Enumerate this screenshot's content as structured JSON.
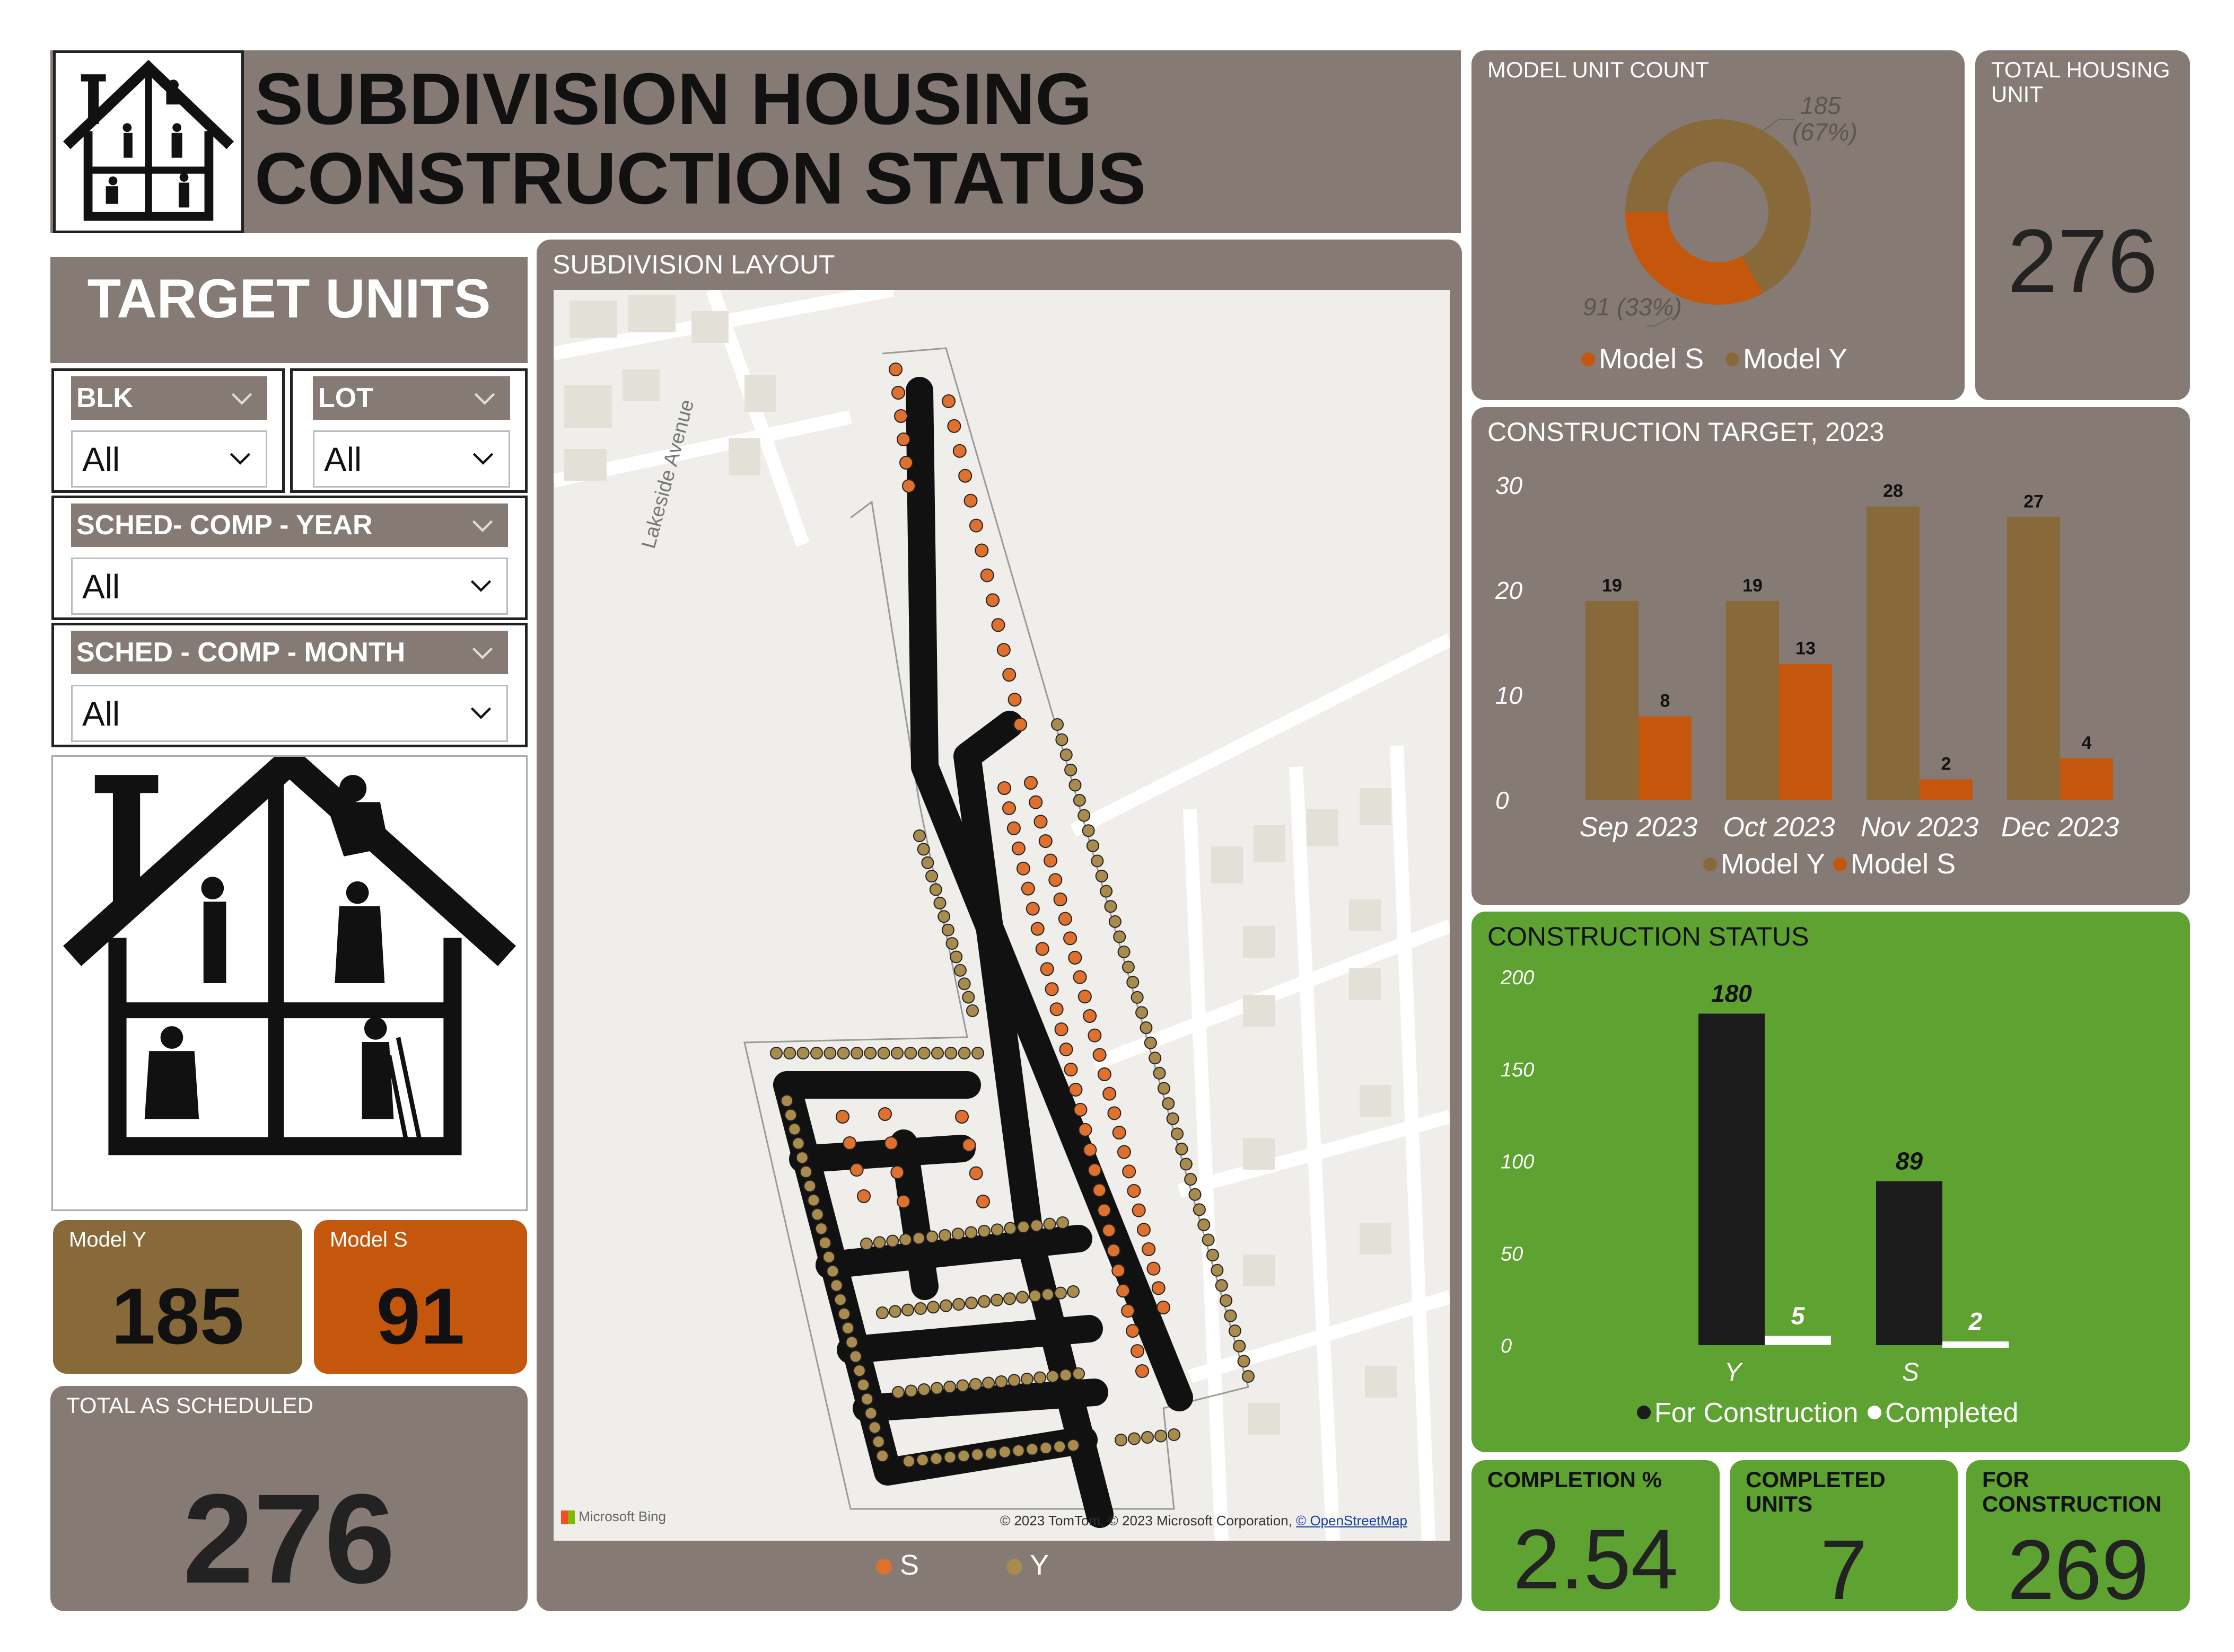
{
  "header": {
    "title_line1": "SUBDIVISION HOUSING",
    "title_line2": "CONSTRUCTION STATUS",
    "logo_icon": "house-workers-icon"
  },
  "target": {
    "label": "TARGET UNITS"
  },
  "filters": {
    "blk": {
      "label": "BLK",
      "value": "All"
    },
    "lot": {
      "label": "LOT",
      "value": "All"
    },
    "year": {
      "label": "SCHED- COMP - YEAR",
      "value": "All"
    },
    "month": {
      "label": "SCHED - COMP - MONTH",
      "value": "All"
    }
  },
  "illustration": {
    "icon": "house-construction-workers-icon"
  },
  "cards": {
    "model_y": {
      "label": "Model Y",
      "value": "185",
      "color": "#87693a"
    },
    "model_s": {
      "label": "Model S",
      "value": "91",
      "color": "#c5570c"
    },
    "total_sched": {
      "label": "TOTAL AS SCHEDULED",
      "value": "276"
    },
    "total_housing": {
      "label": "TOTAL HOUSING UNIT",
      "value": "276"
    },
    "completion_pct": {
      "label": "COMPLETION %",
      "value": "2.54"
    },
    "completed_units": {
      "label": "COMPLETED UNITS",
      "value": "7"
    },
    "for_construction": {
      "label": "FOR CONSTRUCTION",
      "value": "269"
    }
  },
  "map": {
    "title": "SUBDIVISION LAYOUT",
    "street_label": "Lakeside Avenue",
    "bing_label": "Microsoft Bing",
    "attribution": "© 2023 TomTom, © 2023 Microsoft Corporation, ",
    "attribution_link": "© OpenStreetMap",
    "legend": [
      {
        "label": "S",
        "color": "#e0702e"
      },
      {
        "label": "Y",
        "color": "#a98b4e"
      }
    ]
  },
  "chart_data": [
    {
      "type": "pie",
      "title": "MODEL UNIT COUNT",
      "slices": [
        {
          "name": "Model Y",
          "value": 185,
          "label": "185",
          "pct_label": "(67%)",
          "color": "#87693a"
        },
        {
          "name": "Model S",
          "value": 91,
          "label": "91 (33%)",
          "color": "#c5570c"
        }
      ],
      "legend": [
        "Model S",
        "Model Y"
      ]
    },
    {
      "type": "bar",
      "title": "CONSTRUCTION TARGET, 2023",
      "categories": [
        "Sep 2023",
        "Oct 2023",
        "Nov 2023",
        "Dec 2023"
      ],
      "series": [
        {
          "name": "Model Y",
          "values": [
            19,
            19,
            28,
            27
          ],
          "color": "#87693a"
        },
        {
          "name": "Model S",
          "values": [
            8,
            13,
            2,
            4
          ],
          "color": "#c5570c"
        }
      ],
      "yticks": [
        "0",
        "10",
        "20",
        "30"
      ],
      "ylim": [
        0,
        30
      ]
    },
    {
      "type": "bar",
      "title": "CONSTRUCTION STATUS",
      "categories": [
        "Y",
        "S"
      ],
      "series": [
        {
          "name": "For Construction",
          "values": [
            180,
            89
          ],
          "color": "#1c1c1c"
        },
        {
          "name": "Completed",
          "values": [
            5,
            2
          ],
          "color": "#ffffff"
        }
      ],
      "yticks": [
        "0",
        "50",
        "100",
        "150",
        "200"
      ],
      "ylim": [
        0,
        200
      ]
    }
  ]
}
